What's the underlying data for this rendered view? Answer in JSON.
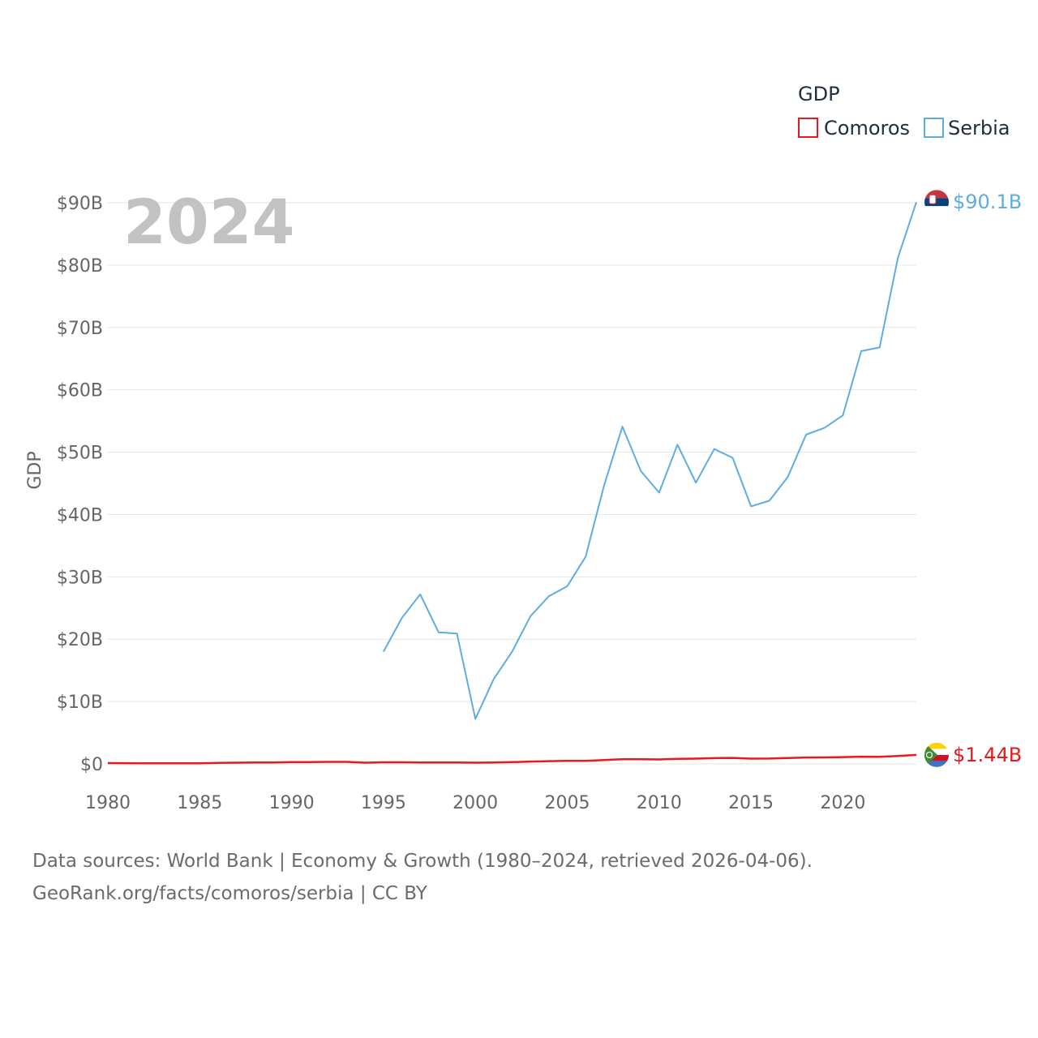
{
  "chart_data": {
    "type": "line",
    "year_watermark": "2024",
    "ylabel": "GDP",
    "xlim": [
      1980,
      2024
    ],
    "ylim": [
      0,
      90
    ],
    "y_ticks": [
      {
        "value": 0,
        "label": "$0"
      },
      {
        "value": 10,
        "label": "$10B"
      },
      {
        "value": 20,
        "label": "$20B"
      },
      {
        "value": 30,
        "label": "$30B"
      },
      {
        "value": 40,
        "label": "$40B"
      },
      {
        "value": 50,
        "label": "$50B"
      },
      {
        "value": 60,
        "label": "$60B"
      },
      {
        "value": 70,
        "label": "$70B"
      },
      {
        "value": 80,
        "label": "$80B"
      },
      {
        "value": 90,
        "label": "$90B"
      }
    ],
    "x_ticks": [
      {
        "value": 1980,
        "label": "1980"
      },
      {
        "value": 1985,
        "label": "1985"
      },
      {
        "value": 1990,
        "label": "1990"
      },
      {
        "value": 1995,
        "label": "1995"
      },
      {
        "value": 2000,
        "label": "2000"
      },
      {
        "value": 2005,
        "label": "2005"
      },
      {
        "value": 2010,
        "label": "2010"
      },
      {
        "value": 2015,
        "label": "2015"
      },
      {
        "value": 2020,
        "label": "2020"
      }
    ],
    "legend": {
      "title": "GDP",
      "placement": "top-right"
    },
    "series": [
      {
        "name": "Comoros",
        "color": "#e8191e",
        "end_label": "$1.44B",
        "flag": "comoros",
        "x": [
          1980,
          1981,
          1982,
          1983,
          1984,
          1985,
          1986,
          1987,
          1988,
          1989,
          1990,
          1991,
          1992,
          1993,
          1994,
          1995,
          1996,
          1997,
          1998,
          1999,
          2000,
          2001,
          2002,
          2003,
          2004,
          2005,
          2006,
          2007,
          2008,
          2009,
          2010,
          2011,
          2012,
          2013,
          2014,
          2015,
          2016,
          2017,
          2018,
          2019,
          2020,
          2021,
          2022,
          2023,
          2024
        ],
        "values": [
          0.13,
          0.12,
          0.11,
          0.1,
          0.1,
          0.1,
          0.15,
          0.2,
          0.22,
          0.22,
          0.3,
          0.3,
          0.32,
          0.32,
          0.2,
          0.26,
          0.26,
          0.22,
          0.24,
          0.24,
          0.2,
          0.22,
          0.28,
          0.38,
          0.44,
          0.48,
          0.5,
          0.62,
          0.75,
          0.75,
          0.72,
          0.82,
          0.84,
          0.92,
          0.96,
          0.84,
          0.86,
          0.95,
          1.03,
          1.04,
          1.09,
          1.16,
          1.14,
          1.27,
          1.44
        ]
      },
      {
        "name": "Serbia",
        "color": "#5dade2",
        "end_label": "$90.1B",
        "flag": "serbia",
        "x": [
          1995,
          1996,
          1997,
          1998,
          1999,
          2000,
          2001,
          2002,
          2003,
          2004,
          2005,
          2006,
          2007,
          2008,
          2009,
          2010,
          2011,
          2012,
          2013,
          2014,
          2015,
          2016,
          2017,
          2018,
          2019,
          2020,
          2021,
          2022,
          2023,
          2024
        ],
        "values": [
          18.0,
          23.4,
          27.2,
          21.1,
          20.9,
          7.2,
          13.6,
          18.0,
          23.7,
          26.9,
          28.5,
          33.2,
          44.6,
          54.1,
          47.0,
          43.5,
          51.2,
          45.1,
          50.5,
          49.1,
          41.3,
          42.2,
          46.0,
          52.8,
          53.9,
          55.9,
          66.2,
          66.8,
          81.2,
          90.1
        ]
      }
    ]
  },
  "source": {
    "line1": "Data sources: World Bank | Economy & Growth (1980–2024, retrieved 2026-04-06).",
    "line2": "GeoRank.org/facts/comoros/serbia | CC BY"
  }
}
